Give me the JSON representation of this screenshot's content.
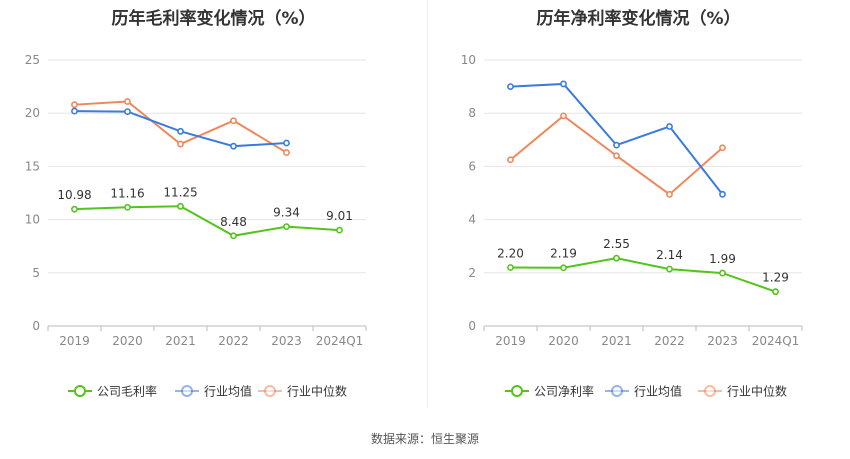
{
  "footer": "数据来源：恒生聚源",
  "chart_data": [
    {
      "type": "line",
      "title": "历年毛利率变化情况（%）",
      "categories": [
        "2019",
        "2020",
        "2021",
        "2022",
        "2023",
        "2024Q1"
      ],
      "ylim": [
        0,
        25
      ],
      "yticks": [
        0,
        5,
        10,
        15,
        20,
        25
      ],
      "grid": true,
      "legend_placement": "bottom",
      "series": [
        {
          "name": "公司毛利率",
          "color": "#52c41a",
          "values": [
            10.98,
            11.16,
            11.25,
            8.48,
            9.34,
            9.01
          ],
          "labels": [
            "10.98",
            "11.16",
            "11.25",
            "8.48",
            "9.34",
            "9.01"
          ]
        },
        {
          "name": "行业均值",
          "color": "#3a7be0",
          "values": [
            20.2,
            20.15,
            18.3,
            16.9,
            17.2,
            null
          ]
        },
        {
          "name": "行业中位数",
          "color": "#f0875a",
          "values": [
            20.8,
            21.1,
            17.1,
            19.3,
            16.3,
            null
          ]
        }
      ]
    },
    {
      "type": "line",
      "title": "历年净利率变化情况（%）",
      "categories": [
        "2019",
        "2020",
        "2021",
        "2022",
        "2023",
        "2024Q1"
      ],
      "ylim": [
        0,
        10
      ],
      "yticks": [
        0,
        2,
        4,
        6,
        8,
        10
      ],
      "grid": true,
      "legend_placement": "bottom",
      "series": [
        {
          "name": "公司净利率",
          "color": "#52c41a",
          "values": [
            2.2,
            2.19,
            2.55,
            2.14,
            1.99,
            1.29
          ],
          "labels": [
            "2.20",
            "2.19",
            "2.55",
            "2.14",
            "1.99",
            "1.29"
          ]
        },
        {
          "name": "行业均值",
          "color": "#3a7be0",
          "values": [
            9.0,
            9.1,
            6.8,
            7.5,
            4.95,
            null
          ]
        },
        {
          "name": "行业中位数",
          "color": "#f0875a",
          "values": [
            6.25,
            7.9,
            6.4,
            4.95,
            6.7,
            null
          ]
        }
      ]
    }
  ]
}
